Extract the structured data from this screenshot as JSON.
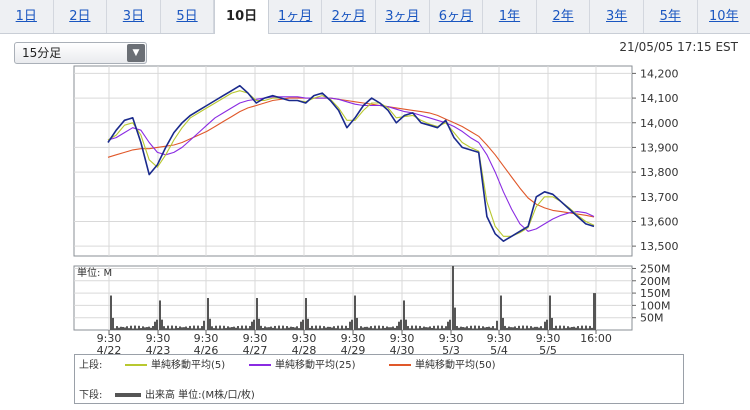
{
  "tabs": [
    {
      "label": "1日",
      "active": false
    },
    {
      "label": "2日",
      "active": false
    },
    {
      "label": "3日",
      "active": false
    },
    {
      "label": "5日",
      "active": false
    },
    {
      "label": "10日",
      "active": true
    },
    {
      "label": "1ヶ月",
      "active": false
    },
    {
      "label": "2ヶ月",
      "active": false
    },
    {
      "label": "3ヶ月",
      "active": false
    },
    {
      "label": "6ヶ月",
      "active": false
    },
    {
      "label": "1年",
      "active": false
    },
    {
      "label": "2年",
      "active": false
    },
    {
      "label": "3年",
      "active": false
    },
    {
      "label": "5年",
      "active": false
    },
    {
      "label": "10年",
      "active": false
    }
  ],
  "interval_select": {
    "value": "15分足"
  },
  "timestamp": "21/05/05 17:15 EST",
  "colors": {
    "price": "#1a2a8c",
    "ma5": "#b8c830",
    "ma25": "#8a2be2",
    "ma50": "#e0582a",
    "volume": "#555555",
    "grid": "#d9d9d9"
  },
  "chart_data": [
    {
      "type": "line",
      "panel": "price",
      "x_tick_labels": [
        [
          "9:30",
          "4/22"
        ],
        [
          "9:30",
          "4/23"
        ],
        [
          "9:30",
          "4/26"
        ],
        [
          "9:30",
          "4/27"
        ],
        [
          "9:30",
          "4/28"
        ],
        [
          "9:30",
          "4/29"
        ],
        [
          "9:30",
          "4/30"
        ],
        [
          "9:30",
          "5/3"
        ],
        [
          "9:30",
          "5/4"
        ],
        [
          "9:30",
          "5/5"
        ],
        [
          "16:00",
          ""
        ]
      ],
      "y_ticks": [
        "14,200",
        "14,100",
        "14,000",
        "13,900",
        "13,800",
        "13,700",
        "13,600",
        "13,500"
      ],
      "ylim": [
        13460,
        14230
      ],
      "series": [
        {
          "name": "price",
          "values": [
            13920,
            13970,
            14010,
            14020,
            13920,
            13790,
            13830,
            13900,
            13960,
            14000,
            14030,
            14050,
            14070,
            14090,
            14110,
            14130,
            14150,
            14120,
            14080,
            14100,
            14110,
            14100,
            14090,
            14090,
            14080,
            14110,
            14120,
            14090,
            14050,
            13980,
            14020,
            14070,
            14100,
            14080,
            14050,
            14000,
            14030,
            14040,
            14000,
            13990,
            13980,
            14010,
            13940,
            13900,
            13890,
            13880,
            13620,
            13550,
            13520,
            13540,
            13560,
            13580,
            13700,
            13720,
            13710,
            13680,
            13650,
            13620,
            13590,
            13580
          ]
        },
        {
          "name": "単純移動平均(5)",
          "values": [
            13930,
            13950,
            13990,
            14000,
            13950,
            13850,
            13820,
            13870,
            13930,
            13980,
            14020,
            14040,
            14060,
            14080,
            14100,
            14120,
            14130,
            14120,
            14090,
            14090,
            14100,
            14100,
            14090,
            14090,
            14085,
            14100,
            14110,
            14095,
            14060,
            14010,
            14010,
            14050,
            14080,
            14080,
            14060,
            14020,
            14025,
            14030,
            14010,
            13995,
            13985,
            14000,
            13960,
            13920,
            13900,
            13885,
            13680,
            13580,
            13540,
            13540,
            13555,
            13575,
            13660,
            13700,
            13700,
            13680,
            13655,
            13625,
            13600,
            13585
          ]
        },
        {
          "name": "単純移動平均(25)",
          "values": [
            13930,
            13940,
            13960,
            13980,
            13970,
            13920,
            13880,
            13870,
            13880,
            13900,
            13930,
            13960,
            13990,
            14020,
            14040,
            14060,
            14080,
            14090,
            14095,
            14100,
            14105,
            14105,
            14105,
            14105,
            14100,
            14100,
            14100,
            14100,
            14095,
            14085,
            14075,
            14070,
            14070,
            14070,
            14065,
            14055,
            14045,
            14040,
            14030,
            14020,
            14010,
            14000,
            13985,
            13965,
            13940,
            13920,
            13870,
            13800,
            13720,
            13650,
            13590,
            13560,
            13570,
            13590,
            13610,
            13625,
            13635,
            13640,
            13635,
            13620
          ]
        },
        {
          "name": "単純移動平均(50)",
          "values": [
            13860,
            13870,
            13880,
            13890,
            13895,
            13895,
            13900,
            13905,
            13910,
            13920,
            13935,
            13950,
            13965,
            13985,
            14005,
            14025,
            14045,
            14060,
            14070,
            14080,
            14090,
            14095,
            14100,
            14100,
            14100,
            14100,
            14100,
            14100,
            14095,
            14090,
            14085,
            14080,
            14075,
            14070,
            14065,
            14060,
            14055,
            14050,
            14045,
            14040,
            14030,
            14015,
            14000,
            13985,
            13965,
            13945,
            13910,
            13870,
            13825,
            13780,
            13735,
            13695,
            13670,
            13655,
            13645,
            13640,
            13635,
            13630,
            13625,
            13618
          ]
        }
      ]
    },
    {
      "type": "bar",
      "panel": "volume",
      "unit_label": "単位: M",
      "y_ticks": [
        "250M",
        "200M",
        "150M",
        "100M",
        "50M"
      ],
      "ylim": [
        0,
        260
      ],
      "session_open_volumes": [
        140,
        120,
        130,
        130,
        130,
        140,
        120,
        260,
        140,
        140
      ],
      "close_volume": 150
    }
  ],
  "legend": {
    "upper_label": "上段:",
    "lower_label": "下段:",
    "upper_items": [
      {
        "label": "単純移動平均(5)"
      },
      {
        "label": "単純移動平均(25)"
      },
      {
        "label": "単純移動平均(50)"
      }
    ],
    "lower_item": {
      "label": "出来高 単位:(M株/口/枚)"
    }
  }
}
